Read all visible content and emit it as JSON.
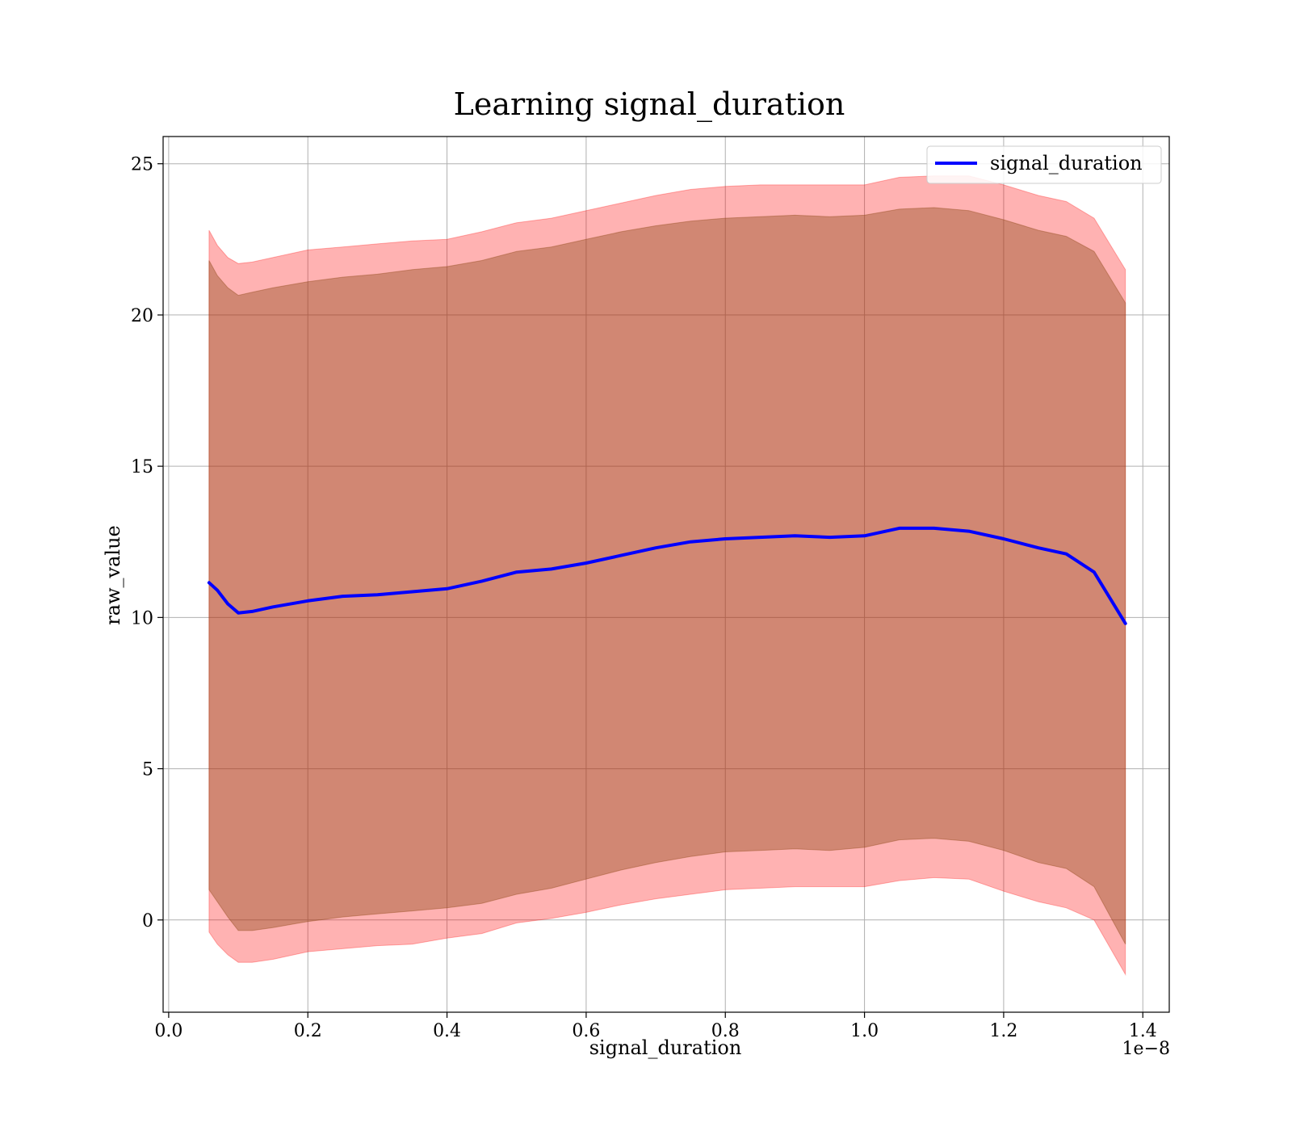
{
  "chart_data": {
    "type": "line",
    "title": "Learning signal_duration",
    "xlabel": "signal_duration",
    "ylabel": "raw_value",
    "x_offset_label": "1e−8",
    "xlim": [
      -0.008,
      1.438
    ],
    "ylim": [
      -3.05,
      25.9
    ],
    "xticks": [
      0.0,
      0.2,
      0.4,
      0.6,
      0.8,
      1.0,
      1.2,
      1.4
    ],
    "xtick_labels": [
      "0.0",
      "0.2",
      "0.4",
      "0.6",
      "0.8",
      "1.0",
      "1.2",
      "1.4"
    ],
    "yticks": [
      0,
      5,
      10,
      15,
      20,
      25
    ],
    "ytick_labels": [
      "0",
      "5",
      "10",
      "15",
      "20",
      "25"
    ],
    "grid": true,
    "legend": {
      "placement": "top-right",
      "entries": [
        "signal_duration"
      ]
    },
    "x": [
      0.058,
      0.07,
      0.085,
      0.1,
      0.12,
      0.15,
      0.2,
      0.25,
      0.3,
      0.35,
      0.4,
      0.45,
      0.5,
      0.55,
      0.6,
      0.65,
      0.7,
      0.75,
      0.8,
      0.85,
      0.9,
      0.95,
      1.0,
      1.05,
      1.1,
      1.15,
      1.2,
      1.25,
      1.29,
      1.33,
      1.375
    ],
    "series": [
      {
        "name": "signal_duration",
        "color": "#0000ff",
        "values": [
          11.15,
          10.9,
          10.45,
          10.15,
          10.2,
          10.35,
          10.55,
          10.7,
          10.75,
          10.85,
          10.95,
          11.2,
          11.5,
          11.6,
          11.8,
          12.05,
          12.3,
          12.5,
          12.6,
          12.65,
          12.7,
          12.65,
          12.7,
          12.95,
          12.95,
          12.85,
          12.6,
          12.3,
          12.1,
          11.5,
          9.8
        ]
      }
    ],
    "bands": [
      {
        "role": "outer",
        "color": "#ff0000",
        "opacity": 0.3,
        "upper": [
          22.8,
          22.3,
          21.9,
          21.7,
          21.75,
          21.9,
          22.15,
          22.25,
          22.35,
          22.45,
          22.5,
          22.75,
          23.05,
          23.2,
          23.45,
          23.7,
          23.95,
          24.15,
          24.25,
          24.3,
          24.3,
          24.3,
          24.3,
          24.55,
          24.6,
          24.6,
          24.3,
          23.95,
          23.75,
          23.2,
          21.5
        ],
        "lower": [
          -0.4,
          -0.8,
          -1.15,
          -1.4,
          -1.4,
          -1.3,
          -1.05,
          -0.95,
          -0.85,
          -0.8,
          -0.6,
          -0.45,
          -0.1,
          0.05,
          0.25,
          0.5,
          0.7,
          0.85,
          1.0,
          1.05,
          1.1,
          1.1,
          1.1,
          1.3,
          1.4,
          1.35,
          0.95,
          0.6,
          0.4,
          0.0,
          -1.8
        ]
      },
      {
        "role": "inner",
        "color": "#8b4513",
        "opacity": 0.4,
        "upper": [
          21.8,
          21.3,
          20.9,
          20.65,
          20.75,
          20.9,
          21.1,
          21.25,
          21.35,
          21.5,
          21.6,
          21.8,
          22.1,
          22.25,
          22.5,
          22.75,
          22.95,
          23.1,
          23.2,
          23.25,
          23.3,
          23.25,
          23.3,
          23.5,
          23.55,
          23.45,
          23.15,
          22.8,
          22.6,
          22.1,
          20.4
        ],
        "lower": [
          1.0,
          0.6,
          0.1,
          -0.35,
          -0.35,
          -0.25,
          -0.05,
          0.1,
          0.2,
          0.3,
          0.4,
          0.55,
          0.85,
          1.05,
          1.35,
          1.65,
          1.9,
          2.1,
          2.25,
          2.3,
          2.35,
          2.3,
          2.4,
          2.65,
          2.7,
          2.6,
          2.3,
          1.9,
          1.7,
          1.1,
          -0.8
        ]
      }
    ]
  }
}
